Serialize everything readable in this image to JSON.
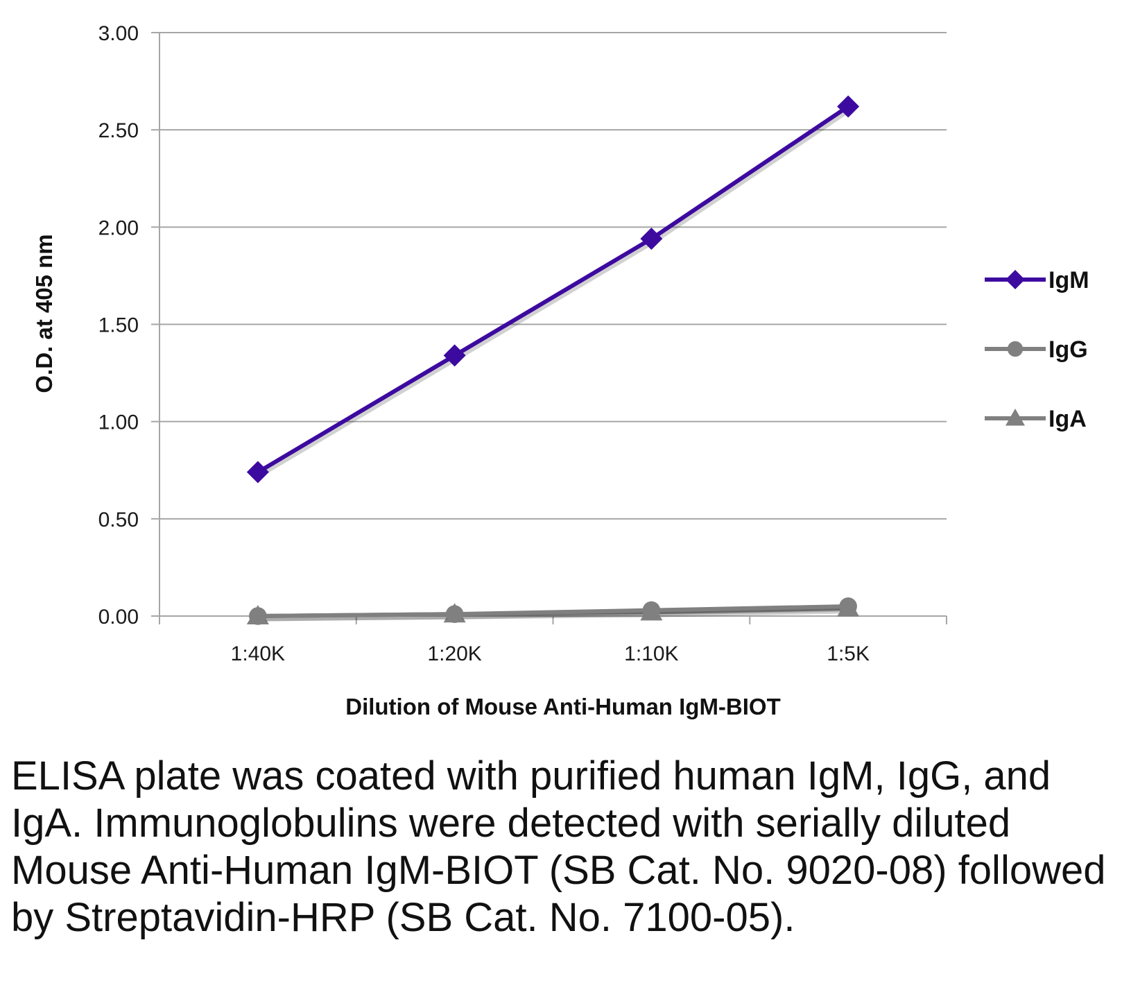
{
  "chart_data": {
    "type": "line",
    "title": "",
    "xlabel": "Dilution of Mouse Anti-Human IgM-BIOT",
    "ylabel": "O.D. at 405 nm",
    "categories": [
      "1:40K",
      "1:20K",
      "1:10K",
      "1:5K"
    ],
    "ylim": [
      0,
      3
    ],
    "yticks": [
      "0.00",
      "0.50",
      "1.00",
      "1.50",
      "2.00",
      "2.50",
      "3.00"
    ],
    "grid": true,
    "legend_position": "right",
    "series": [
      {
        "name": "IgM",
        "values": [
          0.74,
          1.34,
          1.94,
          2.62
        ],
        "color": "#3d0aa0",
        "marker": "diamond"
      },
      {
        "name": "IgG",
        "values": [
          0.0,
          0.01,
          0.03,
          0.05
        ],
        "color": "#808080",
        "marker": "circle"
      },
      {
        "name": "IgA",
        "values": [
          0.0,
          0.01,
          0.02,
          0.04
        ],
        "color": "#808080",
        "marker": "triangle"
      }
    ]
  },
  "caption": "ELISA plate was coated with purified human IgM, IgG, and IgA.  Immunoglobulins were detected with serially diluted Mouse Anti-Human IgM-BIOT (SB Cat. No. 9020-08) followed by Streptavidin-HRP (SB Cat. No. 7100-05)."
}
